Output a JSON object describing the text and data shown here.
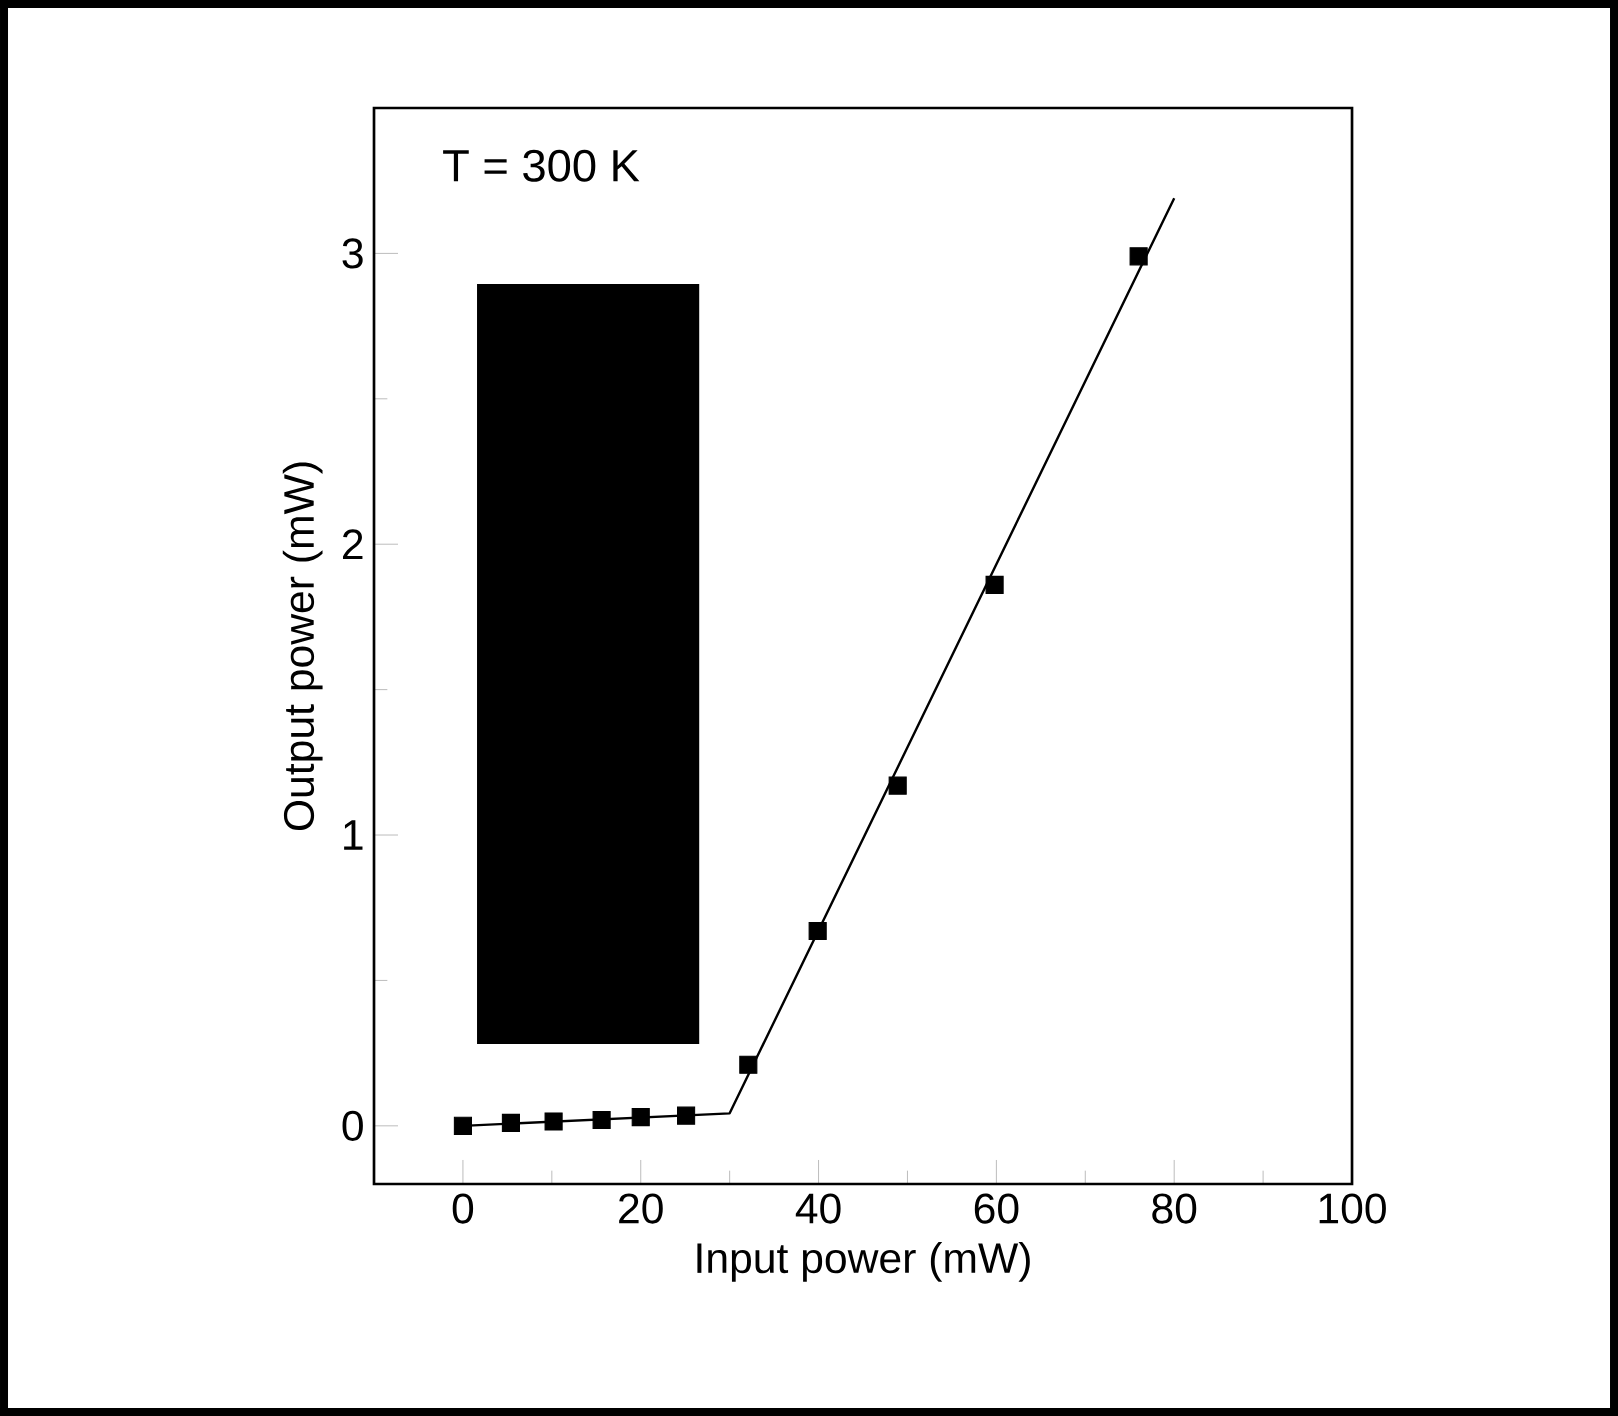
{
  "chart_data": {
    "type": "scatter",
    "xlabel": "Input power (mW)",
    "ylabel": "Output power (mW)",
    "annotations": [
      "T = 300 K"
    ],
    "xlim": [
      -10,
      100
    ],
    "ylim": [
      -0.2,
      3.5
    ],
    "xticks": [
      0,
      {
        "value": 10,
        "label": null
      },
      20,
      {
        "value": 30,
        "label": null
      },
      40,
      {
        "value": 50,
        "label": null
      },
      60,
      {
        "value": 70,
        "label": null
      },
      80,
      {
        "value": 90,
        "label": null
      },
      100
    ],
    "yticks": [
      0,
      {
        "value": 0.5,
        "label": null
      },
      1,
      {
        "value": 1.5,
        "label": null
      },
      2,
      {
        "value": 2.5,
        "label": null
      },
      3
    ],
    "series": [
      {
        "color": "#000000",
        "marker": "square",
        "x": [
          0,
          5.4,
          10.2,
          15.6,
          20,
          25.1,
          32.1,
          39.9,
          48.9,
          59.8,
          76.0
        ],
        "values": [
          0,
          0.01,
          0.015,
          0.02,
          0.03,
          0.035,
          0.21,
          0.67,
          1.17,
          1.86,
          2.99
        ]
      },
      {
        "type": "line",
        "color": "#000000",
        "line_style": "solid",
        "x": [
          0,
          30,
          80
        ],
        "values": [
          0,
          0.043,
          3.19
        ]
      }
    ]
  }
}
